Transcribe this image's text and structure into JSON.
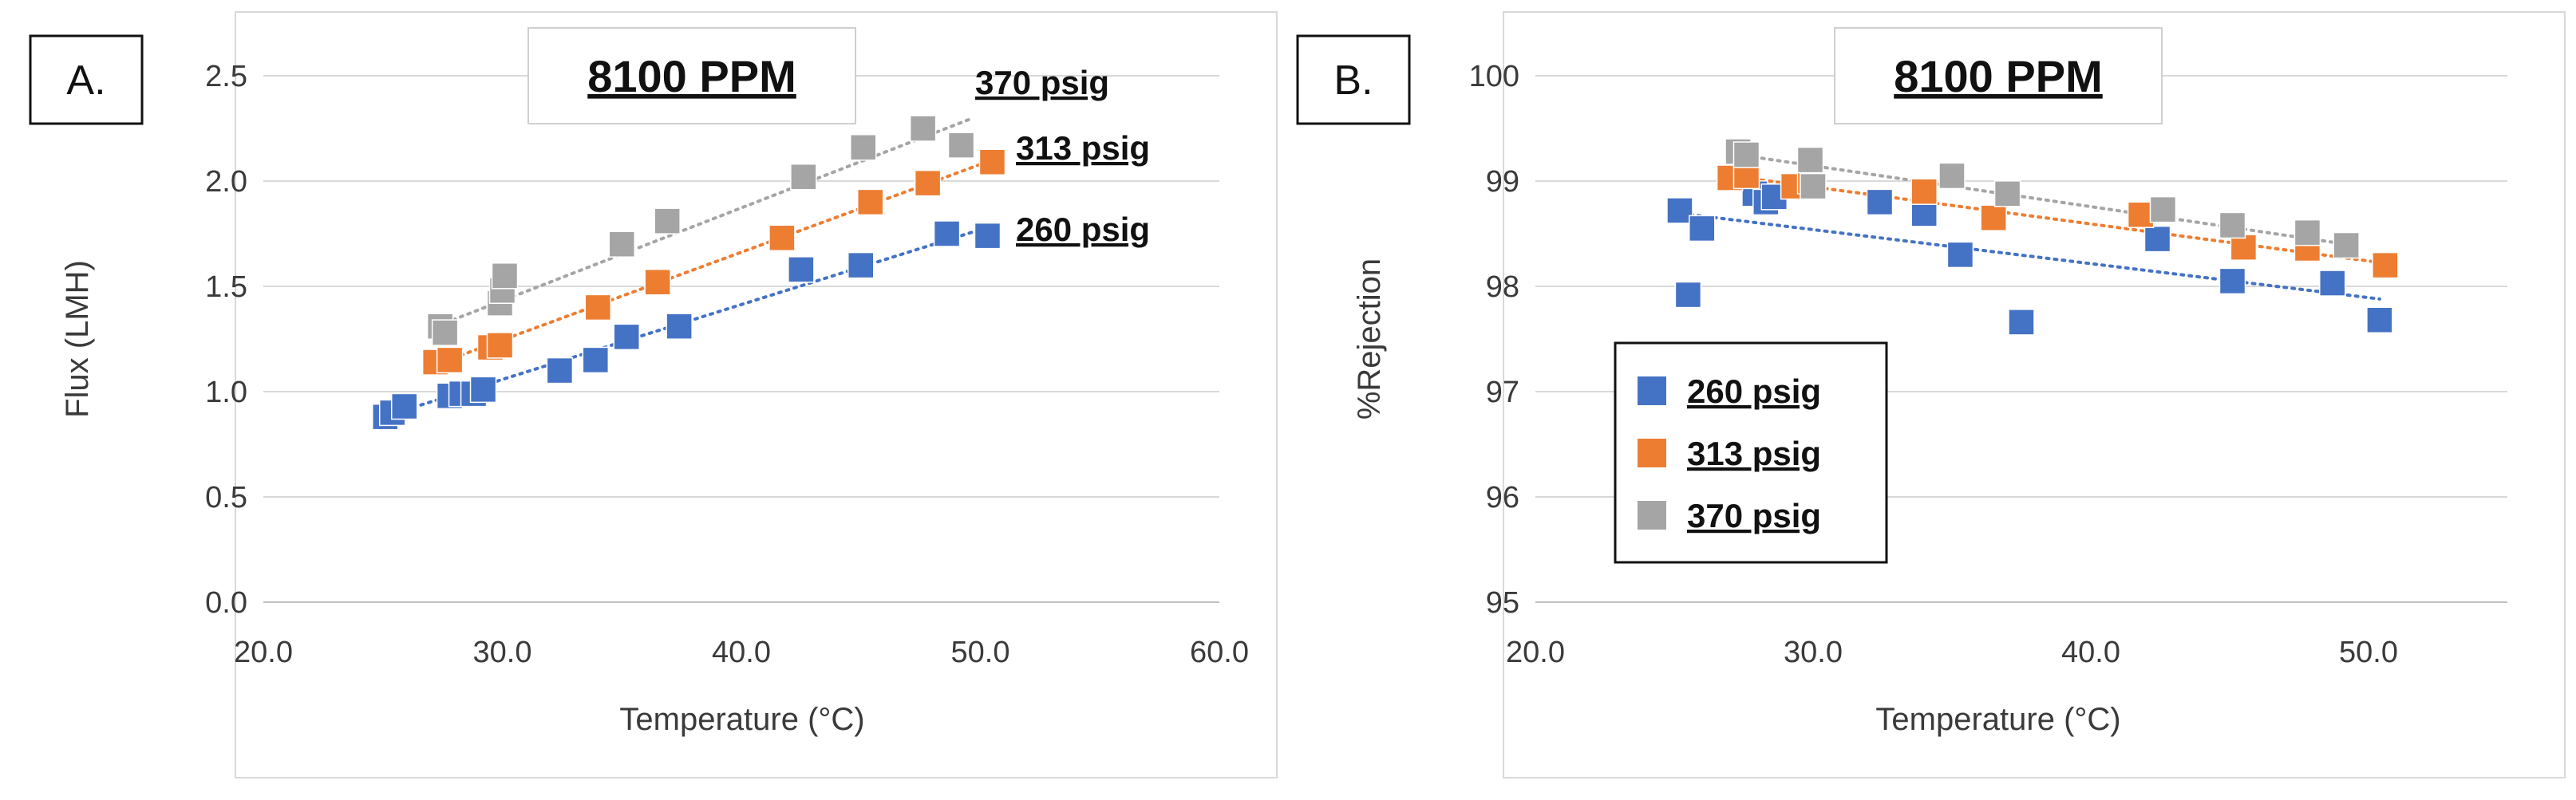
{
  "chart_data": [
    {
      "type": "scatter",
      "panel_label": "A.",
      "title": "8100 PPM",
      "xlabel": "Temperature (°C)",
      "ylabel": "Flux (LMH)",
      "xlim": [
        20,
        60
      ],
      "ylim": [
        0,
        2.5
      ],
      "xticks": [
        "20.0",
        "30.0",
        "40.0",
        "50.0",
        "60.0"
      ],
      "yticks": [
        "0.0",
        "0.5",
        "1.0",
        "1.5",
        "2.0",
        "2.5"
      ],
      "legend": "series labels placed at right end of trend lines",
      "series": [
        {
          "name": "260 psig",
          "color": "#4472C4",
          "x": [
            25.1,
            25.4,
            25.9,
            27.8,
            28.3,
            28.8,
            29.2,
            32.4,
            33.9,
            35.2,
            37.4,
            42.5,
            45.0,
            48.6,
            50.3
          ],
          "y": [
            0.88,
            0.9,
            0.93,
            0.98,
            0.99,
            0.99,
            1.01,
            1.1,
            1.15,
            1.26,
            1.31,
            1.58,
            1.6,
            1.75,
            1.74
          ],
          "trend": [
            [
              25,
              0.88
            ],
            [
              50.3,
              1.78
            ]
          ]
        },
        {
          "name": "313 psig",
          "color": "#ED7D31",
          "x": [
            27.2,
            27.8,
            29.5,
            29.9,
            34.0,
            36.5,
            41.7,
            45.4,
            47.8,
            50.5
          ],
          "y": [
            1.14,
            1.15,
            1.21,
            1.22,
            1.4,
            1.52,
            1.73,
            1.9,
            1.99,
            2.09
          ],
          "trend": [
            [
              27,
              1.12
            ],
            [
              50.5,
              2.1
            ]
          ]
        },
        {
          "name": "370 psig",
          "color": "#A5A5A5",
          "x": [
            27.4,
            27.6,
            29.9,
            30.0,
            30.1,
            35.0,
            36.9,
            42.6,
            45.1,
            47.6,
            49.2
          ],
          "y": [
            1.31,
            1.28,
            1.42,
            1.48,
            1.55,
            1.7,
            1.81,
            2.02,
            2.16,
            2.25,
            2.17
          ],
          "trend": [
            [
              27,
              1.3
            ],
            [
              49.7,
              2.3
            ]
          ]
        }
      ]
    },
    {
      "type": "scatter",
      "panel_label": "B.",
      "title": "8100 PPM",
      "xlabel": "Temperature (°C)",
      "ylabel": "%Rejection",
      "xlim": [
        20,
        55
      ],
      "ylim": [
        95,
        100
      ],
      "xticks": [
        "20.0",
        "30.0",
        "40.0",
        "50.0"
      ],
      "yticks": [
        "95",
        "96",
        "97",
        "98",
        "99",
        "100"
      ],
      "legend": "lower-left",
      "series": [
        {
          "name": "260 psig",
          "color": "#4472C4",
          "x": [
            25.2,
            25.5,
            26.0,
            27.9,
            28.3,
            28.6,
            32.4,
            34.0,
            35.3,
            37.5,
            42.4,
            45.1,
            48.7,
            50.4
          ],
          "y": [
            98.72,
            97.92,
            98.55,
            98.88,
            98.8,
            98.85,
            98.8,
            98.69,
            98.3,
            97.66,
            98.45,
            98.05,
            98.03,
            97.68
          ],
          "trend": [
            [
              25,
              98.7
            ],
            [
              50.4,
              97.88
            ]
          ]
        },
        {
          "name": "313 psig",
          "color": "#ED7D31",
          "x": [
            27.0,
            27.6,
            29.3,
            29.9,
            34.0,
            36.5,
            41.8,
            45.5,
            47.8,
            50.6
          ],
          "y": [
            99.03,
            99.05,
            98.95,
            99.0,
            98.9,
            98.65,
            98.68,
            98.37,
            98.36,
            98.2
          ],
          "trend": [
            [
              27,
              99.05
            ],
            [
              50.6,
              98.22
            ]
          ]
        },
        {
          "name": "370 psig",
          "color": "#A5A5A5",
          "x": [
            27.3,
            27.6,
            29.9,
            30.0,
            35.0,
            37.0,
            42.6,
            45.1,
            47.8,
            49.2
          ],
          "y": [
            99.28,
            99.25,
            99.2,
            98.95,
            99.05,
            98.88,
            98.73,
            98.58,
            98.51,
            98.39
          ],
          "trend": [
            [
              27.3,
              99.25
            ],
            [
              49.2,
              98.4
            ]
          ]
        }
      ]
    }
  ]
}
